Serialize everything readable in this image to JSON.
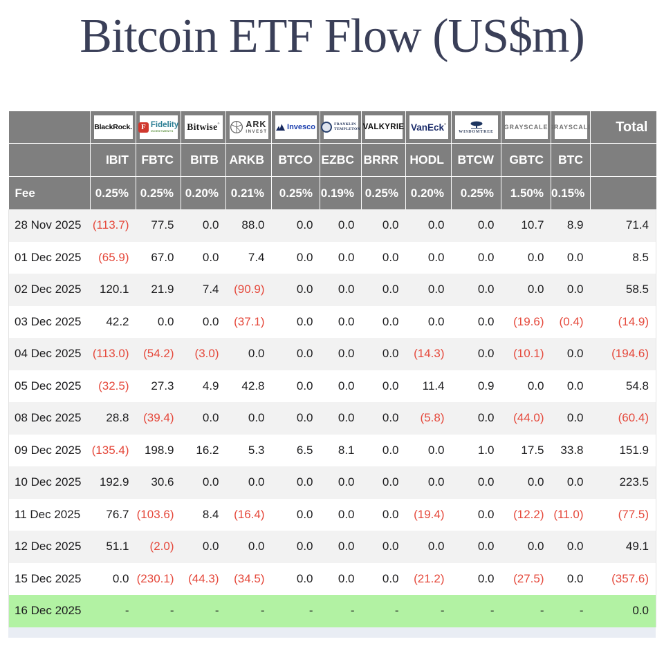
{
  "title": "Bitcoin ETF Flow (US$m)",
  "colors": {
    "header_gray": "#7f7f7f",
    "negative_red": "#e5483b",
    "highlight_green": "#b2f2a3",
    "stripe_gray": "#f2f2f2",
    "title_navy": "#3a3f58"
  },
  "logos": {
    "blackrock": "BlackRock.",
    "fidelity_f": "F",
    "fidelity": "Fidelity",
    "fidelity_sub": "INVESTMENTS",
    "bitwise": "Bitwise",
    "ark_top": "ARK",
    "ark_bottom": "INVEST",
    "invesco": "Invesco",
    "franklin_line1": "FRANKLIN",
    "franklin_line2": "TEMPLETON",
    "valkyrie": "VALKYRIE",
    "vaneck": "VanEck",
    "wisdomtree": "WISDOMTREE",
    "grayscale": "GRAYSCALE",
    "registered": "®"
  },
  "chart_data": {
    "type": "table",
    "title": "Bitcoin ETF Flow (US$m)",
    "total_label": "Total",
    "fee_label": "Fee",
    "columns": [
      {
        "ticker": "IBIT",
        "fee": "0.25%",
        "issuer": "BlackRock"
      },
      {
        "ticker": "FBTC",
        "fee": "0.25%",
        "issuer": "Fidelity"
      },
      {
        "ticker": "BITB",
        "fee": "0.20%",
        "issuer": "Bitwise"
      },
      {
        "ticker": "ARKB",
        "fee": "0.21%",
        "issuer": "ARK Invest"
      },
      {
        "ticker": "BTCO",
        "fee": "0.25%",
        "issuer": "Invesco"
      },
      {
        "ticker": "EZBC",
        "fee": "0.19%",
        "issuer": "Franklin Templeton"
      },
      {
        "ticker": "BRRR",
        "fee": "0.25%",
        "issuer": "Valkyrie"
      },
      {
        "ticker": "HODL",
        "fee": "0.20%",
        "issuer": "VanEck"
      },
      {
        "ticker": "BTCW",
        "fee": "0.25%",
        "issuer": "WisdomTree"
      },
      {
        "ticker": "GBTC",
        "fee": "1.50%",
        "issuer": "Grayscale"
      },
      {
        "ticker": "BTC",
        "fee": "0.15%",
        "issuer": "Grayscale"
      }
    ],
    "rows": [
      {
        "date": "28 Nov 2025",
        "values": [
          "(113.7)",
          "77.5",
          "0.0",
          "88.0",
          "0.0",
          "0.0",
          "0.0",
          "0.0",
          "0.0",
          "10.7",
          "8.9"
        ],
        "total": "71.4",
        "highlight": false
      },
      {
        "date": "01 Dec 2025",
        "values": [
          "(65.9)",
          "67.0",
          "0.0",
          "7.4",
          "0.0",
          "0.0",
          "0.0",
          "0.0",
          "0.0",
          "0.0",
          "0.0"
        ],
        "total": "8.5",
        "highlight": false
      },
      {
        "date": "02 Dec 2025",
        "values": [
          "120.1",
          "21.9",
          "7.4",
          "(90.9)",
          "0.0",
          "0.0",
          "0.0",
          "0.0",
          "0.0",
          "0.0",
          "0.0"
        ],
        "total": "58.5",
        "highlight": false
      },
      {
        "date": "03 Dec 2025",
        "values": [
          "42.2",
          "0.0",
          "0.0",
          "(37.1)",
          "0.0",
          "0.0",
          "0.0",
          "0.0",
          "0.0",
          "(19.6)",
          "(0.4)"
        ],
        "total": "(14.9)",
        "highlight": false
      },
      {
        "date": "04 Dec 2025",
        "values": [
          "(113.0)",
          "(54.2)",
          "(3.0)",
          "0.0",
          "0.0",
          "0.0",
          "0.0",
          "(14.3)",
          "0.0",
          "(10.1)",
          "0.0"
        ],
        "total": "(194.6)",
        "highlight": false
      },
      {
        "date": "05 Dec 2025",
        "values": [
          "(32.5)",
          "27.3",
          "4.9",
          "42.8",
          "0.0",
          "0.0",
          "0.0",
          "11.4",
          "0.9",
          "0.0",
          "0.0"
        ],
        "total": "54.8",
        "highlight": false
      },
      {
        "date": "08 Dec 2025",
        "values": [
          "28.8",
          "(39.4)",
          "0.0",
          "0.0",
          "0.0",
          "0.0",
          "0.0",
          "(5.8)",
          "0.0",
          "(44.0)",
          "0.0"
        ],
        "total": "(60.4)",
        "highlight": false
      },
      {
        "date": "09 Dec 2025",
        "values": [
          "(135.4)",
          "198.9",
          "16.2",
          "5.3",
          "6.5",
          "8.1",
          "0.0",
          "0.0",
          "1.0",
          "17.5",
          "33.8"
        ],
        "total": "151.9",
        "highlight": false
      },
      {
        "date": "10 Dec 2025",
        "values": [
          "192.9",
          "30.6",
          "0.0",
          "0.0",
          "0.0",
          "0.0",
          "0.0",
          "0.0",
          "0.0",
          "0.0",
          "0.0"
        ],
        "total": "223.5",
        "highlight": false
      },
      {
        "date": "11 Dec 2025",
        "values": [
          "76.7",
          "(103.6)",
          "8.4",
          "(16.4)",
          "0.0",
          "0.0",
          "0.0",
          "(19.4)",
          "0.0",
          "(12.2)",
          "(11.0)"
        ],
        "total": "(77.5)",
        "highlight": false
      },
      {
        "date": "12 Dec 2025",
        "values": [
          "51.1",
          "(2.0)",
          "0.0",
          "0.0",
          "0.0",
          "0.0",
          "0.0",
          "0.0",
          "0.0",
          "0.0",
          "0.0"
        ],
        "total": "49.1",
        "highlight": false
      },
      {
        "date": "15 Dec 2025",
        "values": [
          "0.0",
          "(230.1)",
          "(44.3)",
          "(34.5)",
          "0.0",
          "0.0",
          "0.0",
          "(21.2)",
          "0.0",
          "(27.5)",
          "0.0"
        ],
        "total": "(357.6)",
        "highlight": false
      },
      {
        "date": "16 Dec 2025",
        "values": [
          "-",
          "-",
          "-",
          "-",
          "-",
          "-",
          "-",
          "-",
          "-",
          "-",
          "-"
        ],
        "total": "0.0",
        "highlight": true
      }
    ]
  }
}
